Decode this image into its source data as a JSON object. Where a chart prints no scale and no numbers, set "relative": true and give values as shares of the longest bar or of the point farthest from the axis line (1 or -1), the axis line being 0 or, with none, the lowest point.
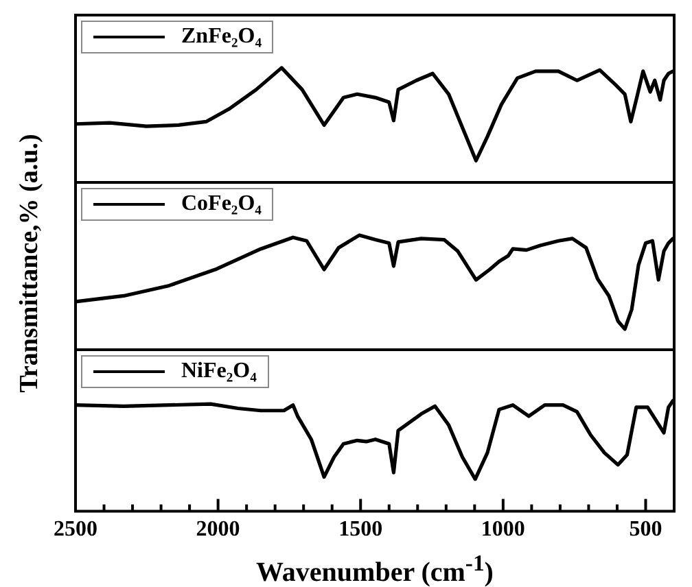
{
  "chart_data": [
    {
      "type": "line",
      "relative": true,
      "xlim": [
        2500,
        400
      ],
      "tick_labels": false,
      "legend": "top left",
      "marker": "none",
      "x": [
        2500,
        2380,
        2251,
        2139,
        2042,
        1962,
        1866,
        1777,
        1705,
        1628,
        1560,
        1512,
        1448,
        1400,
        1384,
        1368,
        1304,
        1247,
        1191,
        1143,
        1095,
        1055,
        1006,
        950,
        886,
        806,
        741,
        661,
        605,
        573,
        552,
        533,
        509,
        484,
        468,
        449,
        436,
        420,
        404
      ],
      "series": [
        {
          "name": "ZnFe₂O₄",
          "color": "#000000",
          "values": [
            0.51,
            0.52,
            0.49,
            0.5,
            0.53,
            0.64,
            0.81,
            1,
            0.81,
            0.5,
            0.74,
            0.77,
            0.74,
            0.7,
            0.54,
            0.81,
            0.89,
            0.95,
            0.77,
            0.48,
            0.19,
            0.4,
            0.68,
            0.91,
            0.97,
            0.97,
            0.89,
            0.98,
            0.85,
            0.77,
            0.53,
            0.72,
            0.97,
            0.79,
            0.89,
            0.72,
            0.89,
            0.95,
            0.97
          ]
        }
      ]
    },
    {
      "type": "line",
      "relative": true,
      "xlim": [
        2500,
        400
      ],
      "tick_labels": false,
      "legend": "top left",
      "marker": "none",
      "ylabel": "Transmittance,% (a.u.)",
      "x": [
        2500,
        2331,
        2171,
        2010,
        1850,
        1737,
        1689,
        1628,
        1577,
        1504,
        1448,
        1400,
        1384,
        1368,
        1287,
        1207,
        1159,
        1095,
        1047,
        1014,
        982,
        966,
        918,
        870,
        806,
        757,
        709,
        669,
        629,
        597,
        573,
        549,
        525,
        500,
        476,
        455,
        436,
        420,
        404
      ],
      "series": [
        {
          "name": "CoFe₂O₄",
          "color": "#000000",
          "values": [
            0.42,
            0.47,
            0.56,
            0.7,
            0.88,
            0.98,
            0.95,
            0.7,
            0.89,
            1,
            0.96,
            0.93,
            0.73,
            0.94,
            0.97,
            0.96,
            0.86,
            0.61,
            0.7,
            0.77,
            0.82,
            0.88,
            0.87,
            0.91,
            0.95,
            0.97,
            0.89,
            0.62,
            0.47,
            0.25,
            0.18,
            0.35,
            0.74,
            0.93,
            0.95,
            0.61,
            0.86,
            0.93,
            0.97
          ]
        }
      ]
    },
    {
      "type": "line",
      "relative": true,
      "xlim": [
        2500,
        400
      ],
      "tick_labels": "x",
      "legend": "top left",
      "marker": "none",
      "xlabel": "Wavenumber (cm$^{-1}$)",
      "xticks": [
        2500,
        {
          "value": 2400,
          "label": null
        },
        {
          "value": 2300,
          "label": null
        },
        {
          "value": 2200,
          "label": null
        },
        {
          "value": 2100,
          "label": null
        },
        2000,
        {
          "value": 1900,
          "label": null
        },
        {
          "value": 1800,
          "label": null
        },
        {
          "value": 1700,
          "label": null
        },
        {
          "value": 1600,
          "label": null
        },
        1500,
        {
          "value": 1400,
          "label": null
        },
        {
          "value": 1300,
          "label": null
        },
        {
          "value": 1200,
          "label": null
        },
        {
          "value": 1100,
          "label": null
        },
        1000,
        {
          "value": 900,
          "label": null
        },
        {
          "value": 800,
          "label": null
        },
        {
          "value": 700,
          "label": null
        },
        {
          "value": 600,
          "label": null
        },
        500
      ],
      "x": [
        2500,
        2331,
        2171,
        2026,
        1930,
        1850,
        1769,
        1737,
        1721,
        1673,
        1628,
        1593,
        1560,
        1512,
        1480,
        1448,
        1400,
        1384,
        1368,
        1287,
        1239,
        1191,
        1143,
        1098,
        1055,
        1014,
        966,
        910,
        854,
        790,
        741,
        693,
        645,
        597,
        565,
        533,
        493,
        468,
        436,
        420,
        404
      ],
      "series": [
        {
          "name": "NiFe₂O₄",
          "color": "#000000",
          "values": [
            0.96,
            0.95,
            0.96,
            0.97,
            0.93,
            0.91,
            0.91,
            0.96,
            0.86,
            0.65,
            0.31,
            0.49,
            0.61,
            0.64,
            0.63,
            0.65,
            0.61,
            0.35,
            0.73,
            0.88,
            0.95,
            0.78,
            0.49,
            0.29,
            0.53,
            0.92,
            0.96,
            0.86,
            0.96,
            0.96,
            0.9,
            0.69,
            0.53,
            0.42,
            0.51,
            0.94,
            0.94,
            0.84,
            0.71,
            0.94,
            1
          ]
        }
      ]
    }
  ]
}
